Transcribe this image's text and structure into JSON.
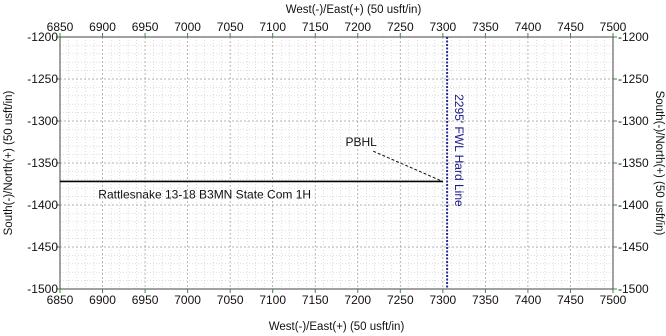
{
  "chart_data": {
    "type": "line",
    "xlabel_top": "West(-)/East(+) (50 usft/in)",
    "xlabel_bottom": "West(-)/East(+) (50 usft/in)",
    "ylabel_left": "South(-)/North(+) (50 usft/in)",
    "ylabel_right": "South(-)/North(+) (50 usft/in)",
    "xlim": [
      6850,
      7500
    ],
    "ylim": [
      -1500,
      -1200
    ],
    "x_ticks": [
      6850,
      6900,
      6950,
      7000,
      7050,
      7100,
      7150,
      7200,
      7250,
      7300,
      7350,
      7400,
      7450,
      7500
    ],
    "y_ticks": [
      -1200,
      -1250,
      -1300,
      -1350,
      -1400,
      -1450,
      -1500
    ],
    "grid": true,
    "grid_minor": true,
    "colors": {
      "well": "#000000",
      "hard_line": "#2a2a9a",
      "grid": "#bdbdbd",
      "axes": "#3a8a3a"
    },
    "series": [
      {
        "name": "Rattlesnake 13-18 B3MN State Com 1H",
        "x": [
          6850,
          7300
        ],
        "y": [
          -1372,
          -1372
        ]
      }
    ],
    "hard_line": {
      "label": "2295' FWL Hard Line",
      "x": 7305
    },
    "annotations": [
      {
        "text": "PBHL",
        "x": 7204,
        "y": -1330,
        "point_x": 7300,
        "point_y": -1372
      }
    ]
  }
}
